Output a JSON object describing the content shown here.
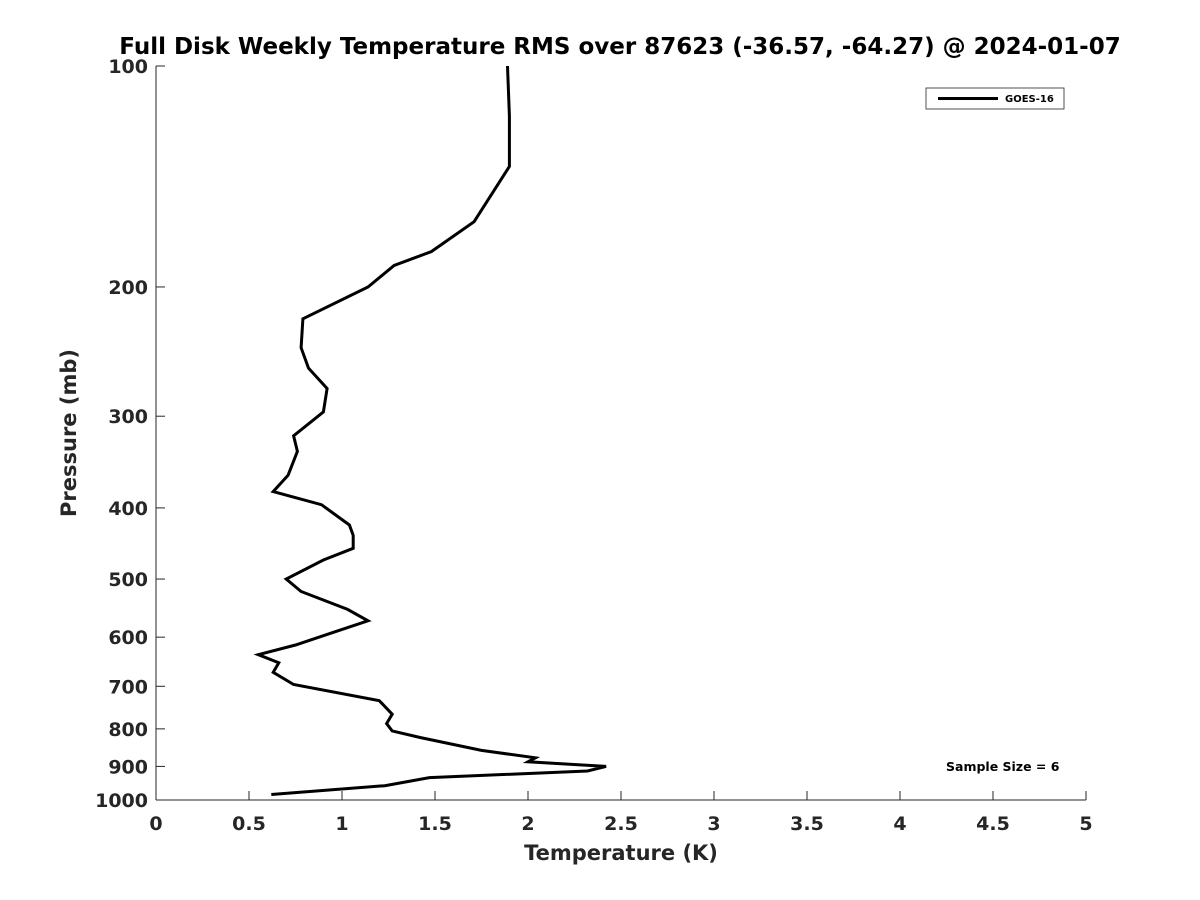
{
  "chart_data": {
    "type": "line",
    "title": "Full Disk Weekly Temperature RMS over 87623 (-36.57, -64.27) @ 2024-01-07",
    "xlabel": "Temperature (K)",
    "ylabel": "Pressure (mb)",
    "xlim": [
      0,
      5
    ],
    "ylim": [
      1000,
      100
    ],
    "y_scale": "log",
    "y_reversed": true,
    "grid": false,
    "legend_position": "top-right",
    "x_ticks": [
      0,
      0.5,
      1,
      1.5,
      2,
      2.5,
      3,
      3.5,
      4,
      4.5,
      5
    ],
    "x_tick_labels": [
      "0",
      "0.5",
      "1",
      "1.5",
      "2",
      "2.5",
      "3",
      "3.5",
      "4",
      "4.5",
      "5"
    ],
    "y_ticks": [
      100,
      200,
      300,
      400,
      500,
      600,
      700,
      800,
      900,
      1000
    ],
    "y_tick_labels": [
      "100",
      "200",
      "300",
      "400",
      "500",
      "600",
      "700",
      "800",
      "900",
      "1000"
    ],
    "series": [
      {
        "name": "GOES-16",
        "color": "#000000",
        "x": [
          1.89,
          1.9,
          1.9,
          1.9,
          1.71,
          1.48,
          1.28,
          1.14,
          0.79,
          0.78,
          0.82,
          0.92,
          0.9,
          0.74,
          0.76,
          0.71,
          0.63,
          0.89,
          1.04,
          1.06,
          1.06,
          0.9,
          0.7,
          0.78,
          1.03,
          1.14,
          0.98,
          0.75,
          0.55,
          0.66,
          0.63,
          0.74,
          1.2,
          1.27,
          1.24,
          1.27,
          1.42,
          1.75,
          2.04,
          2.0,
          2.42,
          2.32,
          1.47,
          1.23,
          0.62
        ],
        "y": [
          100,
          117,
          125,
          137,
          163,
          179,
          187,
          200,
          221,
          242,
          258,
          275,
          296,
          319,
          335,
          361,
          380,
          396,
          422,
          436,
          454,
          471,
          500,
          520,
          550,
          570,
          588,
          615,
          634,
          650,
          670,
          696,
          732,
          764,
          787,
          805,
          822,
          856,
          876,
          887,
          900,
          913,
          932,
          956,
          983
        ]
      }
    ],
    "annotations": [
      "Sample Size = 6"
    ]
  }
}
